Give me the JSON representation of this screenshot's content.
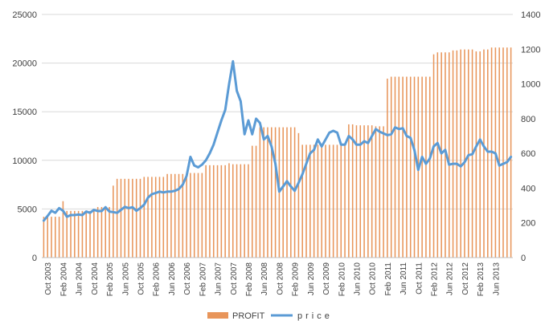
{
  "chart_data": {
    "type": "bar+line",
    "title": "",
    "xlabel": "",
    "ylabel": "",
    "y_left_lim": [
      0,
      25000
    ],
    "y_right_lim": [
      0,
      1400
    ],
    "y_left_ticks": [
      "0",
      "5000",
      "10000",
      "15000",
      "20000",
      "25000"
    ],
    "y_right_ticks": [
      "0",
      "200",
      "400",
      "600",
      "800",
      "1000",
      "1200",
      "1400"
    ],
    "x_tick_labels": [
      "Oct 2003",
      "Feb 2004",
      "Jun 2004",
      "Oct 2004",
      "Feb 2005",
      "Jun 2005",
      "Oct 2005",
      "Feb 2006",
      "Jun 2006",
      "Oct 2006",
      "Feb 2007",
      "Jun 2007",
      "Oct 2007",
      "Feb 2008",
      "Jun 2008",
      "Oct 2008",
      "Feb 2009",
      "Jun 2009",
      "Oct 2009",
      "Feb 2010",
      "Jun 2010",
      "Oct 2010",
      "Feb 2011",
      "Jun 2011",
      "Oct 2011",
      "Feb 2012",
      "Jun 2012",
      "Oct 2012",
      "Feb 2013",
      "Jun 2013"
    ],
    "grid": true,
    "legend_position": "bottom",
    "series": [
      {
        "name": "PROFIT",
        "kind": "bar",
        "axis": "left",
        "color": "#E8955A",
        "points": [
          [
            "2003-09",
            4200
          ],
          [
            "2004-02",
            5800
          ],
          [
            "2004-03",
            4800
          ],
          [
            "2004-11",
            5200
          ],
          [
            "2005-03",
            7400
          ],
          [
            "2005-04",
            8100
          ],
          [
            "2005-11",
            8300
          ],
          [
            "2006-05",
            8600
          ],
          [
            "2006-11",
            8700
          ],
          [
            "2007-03",
            9500
          ],
          [
            "2007-09",
            9700
          ],
          [
            "2007-10",
            9600
          ],
          [
            "2008-03",
            11500
          ],
          [
            "2008-05",
            13400
          ],
          [
            "2009-03",
            12800
          ],
          [
            "2009-04",
            11600
          ],
          [
            "2010-04",
            13700
          ],
          [
            "2010-06",
            13600
          ],
          [
            "2010-11",
            13500
          ],
          [
            "2011-02",
            18400
          ],
          [
            "2011-03",
            18600
          ],
          [
            "2012-02",
            20900
          ],
          [
            "2012-03",
            21100
          ],
          [
            "2012-06",
            21100
          ],
          [
            "2012-07",
            21300
          ],
          [
            "2012-09",
            21400
          ],
          [
            "2013-01",
            21200
          ],
          [
            "2013-03",
            21400
          ],
          [
            "2013-05",
            21600
          ],
          [
            "2013-08",
            21600
          ]
        ]
      },
      {
        "name": "price",
        "kind": "line",
        "axis": "right",
        "color": "#5B9BD5",
        "points": [
          [
            "2003-09",
            213
          ],
          [
            "2003-10",
            240
          ],
          [
            "2003-11",
            270
          ],
          [
            "2003-12",
            258
          ],
          [
            "2004-01",
            285
          ],
          [
            "2004-02",
            270
          ],
          [
            "2004-03",
            235
          ],
          [
            "2004-04",
            245
          ],
          [
            "2004-05",
            245
          ],
          [
            "2004-06",
            248
          ],
          [
            "2004-07",
            245
          ],
          [
            "2004-08",
            265
          ],
          [
            "2004-09",
            258
          ],
          [
            "2004-10",
            275
          ],
          [
            "2004-11",
            268
          ],
          [
            "2004-12",
            268
          ],
          [
            "2005-01",
            290
          ],
          [
            "2005-02",
            265
          ],
          [
            "2005-03",
            262
          ],
          [
            "2005-04",
            258
          ],
          [
            "2005-05",
            275
          ],
          [
            "2005-06",
            292
          ],
          [
            "2005-07",
            285
          ],
          [
            "2005-08",
            290
          ],
          [
            "2005-09",
            270
          ],
          [
            "2005-10",
            285
          ],
          [
            "2005-11",
            305
          ],
          [
            "2005-12",
            345
          ],
          [
            "2006-01",
            365
          ],
          [
            "2006-02",
            372
          ],
          [
            "2006-03",
            380
          ],
          [
            "2006-04",
            375
          ],
          [
            "2006-05",
            380
          ],
          [
            "2006-06",
            380
          ],
          [
            "2006-07",
            385
          ],
          [
            "2006-08",
            395
          ],
          [
            "2006-09",
            420
          ],
          [
            "2006-10",
            470
          ],
          [
            "2006-11",
            580
          ],
          [
            "2006-12",
            530
          ],
          [
            "2007-01",
            520
          ],
          [
            "2007-02",
            535
          ],
          [
            "2007-03",
            560
          ],
          [
            "2007-04",
            600
          ],
          [
            "2007-05",
            650
          ],
          [
            "2007-06",
            720
          ],
          [
            "2007-07",
            790
          ],
          [
            "2007-08",
            850
          ],
          [
            "2007-09",
            1000
          ],
          [
            "2007-10",
            1130
          ],
          [
            "2007-11",
            960
          ],
          [
            "2007-12",
            900
          ],
          [
            "2008-01",
            710
          ],
          [
            "2008-02",
            790
          ],
          [
            "2008-03",
            710
          ],
          [
            "2008-04",
            800
          ],
          [
            "2008-05",
            775
          ],
          [
            "2008-06",
            680
          ],
          [
            "2008-07",
            700
          ],
          [
            "2008-08",
            640
          ],
          [
            "2008-09",
            540
          ],
          [
            "2008-10",
            380
          ],
          [
            "2008-11",
            410
          ],
          [
            "2008-12",
            440
          ],
          [
            "2009-01",
            410
          ],
          [
            "2009-02",
            385
          ],
          [
            "2009-03",
            430
          ],
          [
            "2009-04",
            480
          ],
          [
            "2009-05",
            540
          ],
          [
            "2009-06",
            600
          ],
          [
            "2009-07",
            620
          ],
          [
            "2009-08",
            680
          ],
          [
            "2009-09",
            640
          ],
          [
            "2009-10",
            680
          ],
          [
            "2009-11",
            720
          ],
          [
            "2009-12",
            730
          ],
          [
            "2010-01",
            720
          ],
          [
            "2010-02",
            650
          ],
          [
            "2010-03",
            650
          ],
          [
            "2010-04",
            700
          ],
          [
            "2010-05",
            680
          ],
          [
            "2010-06",
            650
          ],
          [
            "2010-07",
            650
          ],
          [
            "2010-08",
            670
          ],
          [
            "2010-09",
            660
          ],
          [
            "2010-10",
            700
          ],
          [
            "2010-11",
            740
          ],
          [
            "2010-12",
            725
          ],
          [
            "2011-01",
            715
          ],
          [
            "2011-02",
            705
          ],
          [
            "2011-03",
            710
          ],
          [
            "2011-04",
            750
          ],
          [
            "2011-05",
            740
          ],
          [
            "2011-06",
            745
          ],
          [
            "2011-07",
            700
          ],
          [
            "2011-08",
            690
          ],
          [
            "2011-09",
            620
          ],
          [
            "2011-10",
            505
          ],
          [
            "2011-11",
            580
          ],
          [
            "2011-12",
            540
          ],
          [
            "2012-01",
            570
          ],
          [
            "2012-02",
            640
          ],
          [
            "2012-03",
            660
          ],
          [
            "2012-04",
            600
          ],
          [
            "2012-05",
            620
          ],
          [
            "2012-06",
            535
          ],
          [
            "2012-07",
            540
          ],
          [
            "2012-08",
            540
          ],
          [
            "2012-09",
            525
          ],
          [
            "2012-10",
            550
          ],
          [
            "2012-11",
            590
          ],
          [
            "2012-12",
            595
          ],
          [
            "2013-01",
            640
          ],
          [
            "2013-02",
            680
          ],
          [
            "2013-03",
            640
          ],
          [
            "2013-04",
            610
          ],
          [
            "2013-05",
            610
          ],
          [
            "2013-06",
            600
          ],
          [
            "2013-07",
            530
          ],
          [
            "2013-08",
            540
          ],
          [
            "2013-09",
            550
          ],
          [
            "2013-10",
            580
          ]
        ]
      }
    ]
  }
}
